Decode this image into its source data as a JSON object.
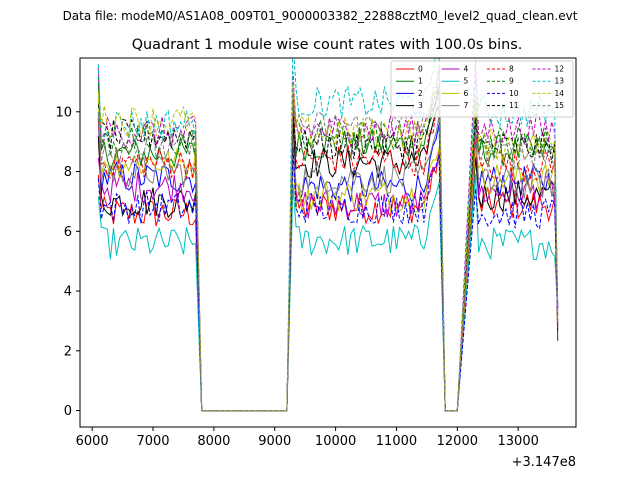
{
  "chart_data": {
    "type": "line",
    "suptitle": "Data file: modeM0/AS1A08_009T01_9000003382_22888cztM0_level2_quad_clean.evt",
    "title": "Quadrant 1 module wise count rates with 100.0s bins.",
    "xlabel": "",
    "ylabel": "",
    "x_offset_label": "+3.147e8",
    "xlim": [
      5800,
      13950
    ],
    "ylim": [
      -0.55,
      11.8
    ],
    "xticks": [
      6000,
      7000,
      8000,
      9000,
      10000,
      11000,
      12000,
      13000
    ],
    "xtick_labels": [
      "6000",
      "7000",
      "8000",
      "9000",
      "10000",
      "11000",
      "12000",
      "13000"
    ],
    "yticks": [
      0,
      2,
      4,
      6,
      8,
      10
    ],
    "ytick_labels": [
      "0",
      "2",
      "4",
      "6",
      "8",
      "10"
    ],
    "legend_position": "upper right",
    "legend_columns": 4,
    "segments": [
      {
        "start": 6100,
        "end": 7700,
        "gap_to": 7800
      },
      {
        "start": 9300,
        "end": 11700,
        "gap_to": 11800
      },
      {
        "start": 12300,
        "end": 13600,
        "gap_to": null
      }
    ],
    "zero_ranges": [
      [
        7800,
        9200
      ],
      [
        11800,
        12000
      ]
    ],
    "series": [
      {
        "name": "0",
        "color": "#ff0000",
        "style": "solid",
        "level": [
          6.6,
          6.8,
          6.9
        ]
      },
      {
        "name": "1",
        "color": "#008000",
        "style": "solid",
        "level": [
          8.6,
          8.9,
          8.7
        ]
      },
      {
        "name": "2",
        "color": "#0000ff",
        "style": "solid",
        "level": [
          7.8,
          7.5,
          7.7
        ]
      },
      {
        "name": "3",
        "color": "#000000",
        "style": "solid",
        "level": [
          7.0,
          8.3,
          7.2
        ]
      },
      {
        "name": "4",
        "color": "#bf00bf",
        "style": "solid",
        "level": [
          7.5,
          6.9,
          7.3
        ]
      },
      {
        "name": "5",
        "color": "#00bfbf",
        "style": "solid",
        "level": [
          5.6,
          5.7,
          5.6
        ]
      },
      {
        "name": "6",
        "color": "#bfbf00",
        "style": "solid",
        "level": [
          8.3,
          7.2,
          7.8
        ]
      },
      {
        "name": "7",
        "color": "#808080",
        "style": "solid",
        "level": [
          8.0,
          7.8,
          7.6
        ]
      },
      {
        "name": "8",
        "color": "#ff0000",
        "style": "dashed",
        "level": [
          8.3,
          8.4,
          8.2
        ]
      },
      {
        "name": "9",
        "color": "#008000",
        "style": "dashed",
        "level": [
          9.0,
          9.2,
          9.0
        ]
      },
      {
        "name": "10",
        "color": "#0000ff",
        "style": "dashed",
        "level": [
          6.8,
          6.8,
          6.6
        ]
      },
      {
        "name": "11",
        "color": "#000000",
        "style": "dashed",
        "level": [
          9.2,
          8.9,
          8.8
        ]
      },
      {
        "name": "12",
        "color": "#bf00bf",
        "style": "dashed",
        "level": [
          9.3,
          9.4,
          9.4
        ]
      },
      {
        "name": "13",
        "color": "#00bfbf",
        "style": "dashed",
        "level": [
          9.6,
          10.3,
          10.0
        ]
      },
      {
        "name": "14",
        "color": "#bfbf00",
        "style": "dashed",
        "level": [
          9.7,
          9.3,
          8.9
        ]
      },
      {
        "name": "15",
        "color": "#808080",
        "style": "dashed",
        "level": [
          8.8,
          9.5,
          8.6
        ]
      }
    ]
  }
}
